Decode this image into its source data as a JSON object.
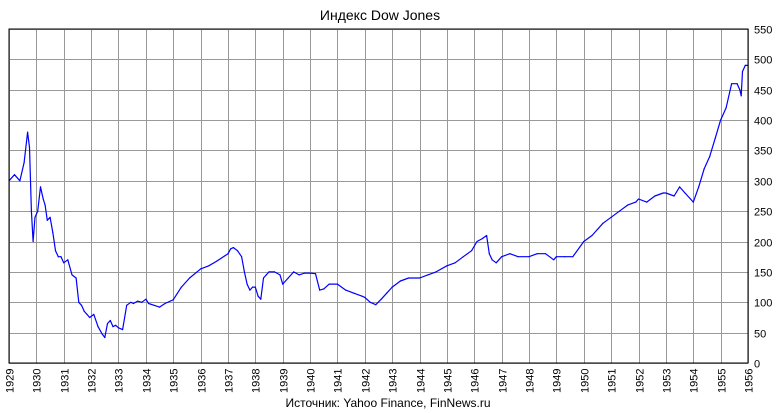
{
  "chart_data": {
    "type": "line",
    "title": "Индекс Dow Jones",
    "source": "Источник: Yahoo Finance, FinNews.ru",
    "xlabel": "",
    "ylabel": "",
    "xlim": [
      1929,
      1956
    ],
    "ylim": [
      0,
      550
    ],
    "y_ticks": [
      "0",
      "50",
      "100",
      "150",
      "200",
      "250",
      "300",
      "350",
      "400",
      "450",
      "500",
      "550"
    ],
    "x_ticks": [
      "1929",
      "1930",
      "1931",
      "1932",
      "1933",
      "1934",
      "1935",
      "1936",
      "1937",
      "1938",
      "1939",
      "1940",
      "1941",
      "1942",
      "1943",
      "1944",
      "1945",
      "1946",
      "1947",
      "1948",
      "1949",
      "1950",
      "1951",
      "1952",
      "1953",
      "1954",
      "1955",
      "1956"
    ],
    "grid": true,
    "line_color": "#0000ff",
    "series": [
      {
        "name": "Dow Jones",
        "x": [
          1929.0,
          1929.2,
          1929.4,
          1929.55,
          1929.68,
          1929.75,
          1929.82,
          1929.88,
          1929.95,
          1930.05,
          1930.15,
          1930.25,
          1930.32,
          1930.4,
          1930.5,
          1930.6,
          1930.7,
          1930.8,
          1930.9,
          1931.0,
          1931.15,
          1931.3,
          1931.45,
          1931.55,
          1931.65,
          1931.75,
          1931.85,
          1931.95,
          1932.1,
          1932.25,
          1932.4,
          1932.5,
          1932.6,
          1932.7,
          1932.8,
          1932.9,
          1933.0,
          1933.15,
          1933.3,
          1933.45,
          1933.55,
          1933.7,
          1933.85,
          1934.0,
          1934.1,
          1934.3,
          1934.5,
          1934.7,
          1935.0,
          1935.3,
          1935.6,
          1936.0,
          1936.3,
          1936.6,
          1937.0,
          1937.1,
          1937.2,
          1937.35,
          1937.5,
          1937.6,
          1937.7,
          1937.8,
          1937.9,
          1938.0,
          1938.1,
          1938.2,
          1938.3,
          1938.4,
          1938.5,
          1938.7,
          1938.9,
          1939.0,
          1939.2,
          1939.4,
          1939.6,
          1939.8,
          1940.0,
          1940.2,
          1940.35,
          1940.5,
          1940.7,
          1941.0,
          1941.3,
          1941.6,
          1941.9,
          1942.0,
          1942.2,
          1942.4,
          1942.6,
          1942.8,
          1943.0,
          1943.3,
          1943.6,
          1944.0,
          1944.3,
          1944.6,
          1945.0,
          1945.3,
          1945.6,
          1945.9,
          1946.1,
          1946.3,
          1946.45,
          1946.55,
          1946.65,
          1946.8,
          1947.0,
          1947.3,
          1947.6,
          1948.0,
          1948.3,
          1948.6,
          1948.9,
          1949.0,
          1949.3,
          1949.6,
          1950.0,
          1950.3,
          1950.5,
          1950.7,
          1951.0,
          1951.3,
          1951.6,
          1951.9,
          1952.0,
          1952.3,
          1952.6,
          1952.9,
          1953.0,
          1953.3,
          1953.5,
          1953.7,
          1953.9,
          1954.0,
          1954.2,
          1954.4,
          1954.6,
          1954.8,
          1955.0,
          1955.2,
          1955.4,
          1955.6,
          1955.7,
          1955.75,
          1955.8,
          1955.9,
          1956.0
        ],
        "values": [
          300,
          310,
          300,
          330,
          380,
          355,
          250,
          200,
          240,
          250,
          290,
          270,
          260,
          235,
          240,
          215,
          185,
          175,
          175,
          165,
          170,
          145,
          140,
          100,
          95,
          85,
          80,
          75,
          80,
          60,
          48,
          42,
          65,
          70,
          60,
          62,
          58,
          55,
          95,
          100,
          98,
          102,
          100,
          105,
          98,
          95,
          92,
          98,
          104,
          125,
          140,
          155,
          160,
          168,
          180,
          188,
          190,
          185,
          175,
          150,
          130,
          120,
          125,
          125,
          110,
          105,
          140,
          145,
          150,
          150,
          145,
          130,
          140,
          150,
          145,
          148,
          148,
          147,
          120,
          122,
          130,
          130,
          120,
          115,
          110,
          108,
          100,
          96,
          105,
          115,
          125,
          135,
          140,
          140,
          145,
          150,
          160,
          165,
          175,
          185,
          200,
          205,
          210,
          180,
          170,
          165,
          175,
          180,
          175,
          175,
          180,
          180,
          170,
          175,
          175,
          175,
          200,
          210,
          220,
          230,
          240,
          250,
          260,
          265,
          270,
          265,
          275,
          280,
          280,
          275,
          290,
          280,
          270,
          265,
          290,
          320,
          340,
          370,
          400,
          420,
          460,
          460,
          450,
          440,
          480,
          490,
          490
        ]
      }
    ]
  }
}
